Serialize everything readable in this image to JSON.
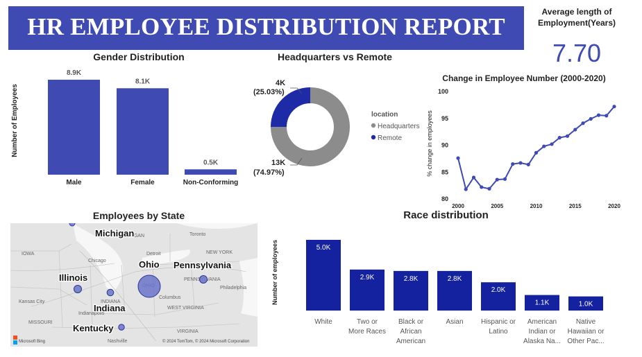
{
  "header": {
    "title": "HR EMPLOYEE DISTRIBUTION REPORT"
  },
  "kpi": {
    "label_line1": "Average length of",
    "label_line2": "Employment(Years)",
    "value": "7.70"
  },
  "gender_chart": {
    "title": "Gender Distribution",
    "ylabel": "Number of Employees",
    "categories": [
      "Male",
      "Female",
      "Non-Conforming"
    ],
    "values": [
      8.9,
      8.1,
      0.5
    ],
    "labels": [
      "8.9K",
      "8.1K",
      "0.5K"
    ],
    "color": "#3f4bb3"
  },
  "location_chart": {
    "title": "Headquarters vs Remote",
    "legend_title": "location",
    "legend": [
      {
        "name": "Headquarters",
        "color": "#8c8c8c"
      },
      {
        "name": "Remote",
        "color": "#1f2aa6"
      }
    ],
    "remote_label": "4K",
    "remote_pct": "(25.03%)",
    "hq_label": "13K",
    "hq_pct": "(74.97%)"
  },
  "change_chart": {
    "title": "Change in Employee Number (2000-2020)",
    "ylabel": "% change in employees",
    "color": "#3f4bb3"
  },
  "map": {
    "title": "Employees by State",
    "states": [
      "Michigan",
      "Ohio",
      "Pennsylvania",
      "Illinois",
      "Indiana",
      "Kentucky"
    ],
    "map_labels": [
      "MICHIGAN",
      "IOWA",
      "Chicago",
      "Detroit",
      "Toronto",
      "NEW YORK",
      "ILLINOIS",
      "Indianapolis",
      "INDIANA",
      "OHIO",
      "Columbus",
      "PENNSYLVANIA",
      "Philadelphia",
      "Kansas City",
      "MISSOURI",
      "WEST VIRGINIA",
      "VIRGINIA",
      "Nashville"
    ],
    "attribution": "© 2024 TomTom, © 2024 Microsoft Corporation",
    "brand": "Microsoft Bing"
  },
  "race_chart": {
    "title": "Race distribution",
    "ylabel": "Number of employees",
    "color": "#1422a0",
    "categories": [
      [
        "White"
      ],
      [
        "Two or",
        "More Races"
      ],
      [
        "Black or",
        "African",
        "American"
      ],
      [
        "Asian"
      ],
      [
        "Hispanic or",
        "Latino"
      ],
      [
        "American",
        "Indian or",
        "Alaska Na..."
      ],
      [
        "Native",
        "Hawaiian or",
        "Other Pac..."
      ]
    ],
    "values": [
      5.0,
      2.9,
      2.8,
      2.8,
      2.0,
      1.1,
      1.0
    ],
    "labels": [
      "5.0K",
      "2.9K",
      "2.8K",
      "2.8K",
      "2.0K",
      "1.1K",
      "1.0K"
    ]
  },
  "chart_data": [
    {
      "type": "bar",
      "title": "Gender Distribution",
      "ylabel": "Number of Employees",
      "categories": [
        "Male",
        "Female",
        "Non-Conforming"
      ],
      "values": [
        8900,
        8100,
        500
      ]
    },
    {
      "type": "pie",
      "title": "Headquarters vs Remote",
      "legend": "location",
      "categories": [
        "Headquarters",
        "Remote"
      ],
      "values": [
        13000,
        4000
      ],
      "percent": [
        74.97,
        25.03
      ]
    },
    {
      "type": "line",
      "title": "Change in Employee Number (2000-2020)",
      "ylabel": "% change in employees",
      "x": [
        2000,
        2001,
        2002,
        2003,
        2004,
        2005,
        2006,
        2007,
        2008,
        2009,
        2010,
        2011,
        2012,
        2013,
        2014,
        2015,
        2016,
        2017,
        2018,
        2019,
        2020
      ],
      "values": [
        87.6,
        81.8,
        84.0,
        82.2,
        81.9,
        83.6,
        83.7,
        86.5,
        86.7,
        86.4,
        88.6,
        89.8,
        90.2,
        91.4,
        91.7,
        92.9,
        94.1,
        94.9,
        95.6,
        95.5,
        97.2
      ],
      "xticks": [
        2000,
        2005,
        2010,
        2015,
        2020
      ],
      "yticks": [
        80,
        85,
        90,
        95,
        100
      ],
      "ylim": [
        80,
        100
      ],
      "xlim": [
        2000,
        2020
      ]
    },
    {
      "type": "bar",
      "title": "Race distribution",
      "ylabel": "Number of employees",
      "categories": [
        "White",
        "Two or More Races",
        "Black or African American",
        "Asian",
        "Hispanic or Latino",
        "American Indian or Alaska Na...",
        "Native Hawaiian or Other Pac..."
      ],
      "values": [
        5000,
        2900,
        2800,
        2800,
        2000,
        1100,
        1000
      ]
    }
  ]
}
